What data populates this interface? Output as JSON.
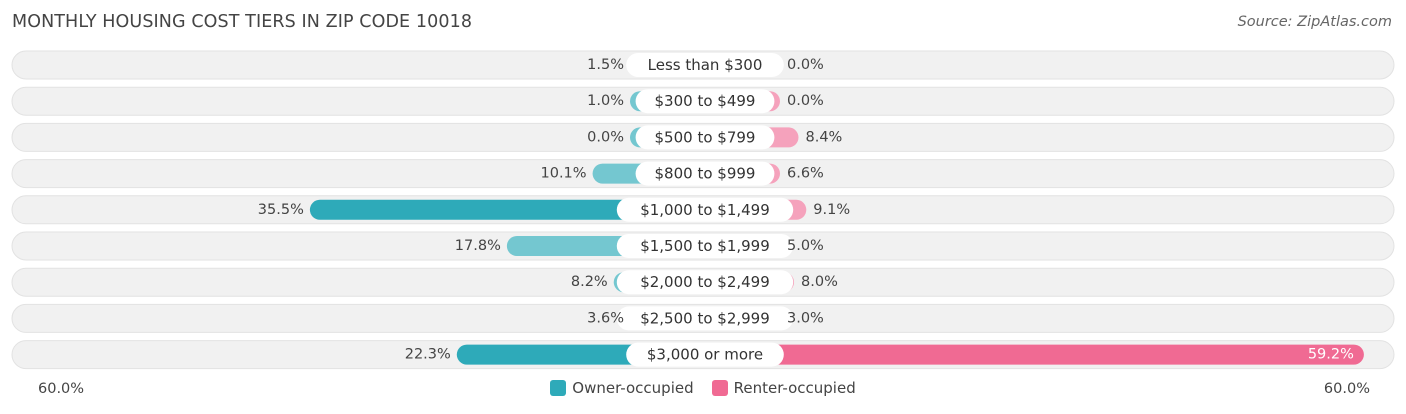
{
  "header": {
    "title": "MONTHLY HOUSING COST TIERS IN ZIP CODE 10018",
    "source": "Source: ZipAtlas.com"
  },
  "colors": {
    "owner": "#2eaab9",
    "owner_light": "#74c7d0",
    "renter": "#f06a93",
    "renter_light": "#f5a2bc",
    "row_bg": "#f1f1f1"
  },
  "legend": {
    "owner_label": "Owner-occupied",
    "renter_label": "Renter-occupied"
  },
  "axis": {
    "left_label": "60.0%",
    "right_label": "60.0%"
  },
  "chart_data": {
    "type": "bar",
    "orientation": "horizontal-diverging",
    "title": "MONTHLY HOUSING COST TIERS IN ZIP CODE 10018",
    "xlim": [
      -60,
      60
    ],
    "categories": [
      "Less than $300",
      "$300 to $499",
      "$500 to $799",
      "$800 to $999",
      "$1,000 to $1,499",
      "$1,500 to $1,999",
      "$2,000 to $2,499",
      "$2,500 to $2,999",
      "$3,000 or more"
    ],
    "series": [
      {
        "name": "Owner-occupied",
        "values": [
          1.5,
          1.0,
          0.0,
          10.1,
          35.5,
          17.8,
          8.2,
          3.6,
          22.3
        ],
        "labels": [
          "1.5%",
          "1.0%",
          "0.0%",
          "10.1%",
          "35.5%",
          "17.8%",
          "8.2%",
          "3.6%",
          "22.3%"
        ]
      },
      {
        "name": "Renter-occupied",
        "values": [
          0.0,
          0.0,
          8.4,
          6.6,
          9.1,
          5.0,
          8.0,
          3.0,
          59.2
        ],
        "labels": [
          "0.0%",
          "0.0%",
          "8.4%",
          "6.6%",
          "9.1%",
          "5.0%",
          "8.0%",
          "3.0%",
          "59.2%"
        ]
      }
    ],
    "legend_position": "bottom-center"
  }
}
